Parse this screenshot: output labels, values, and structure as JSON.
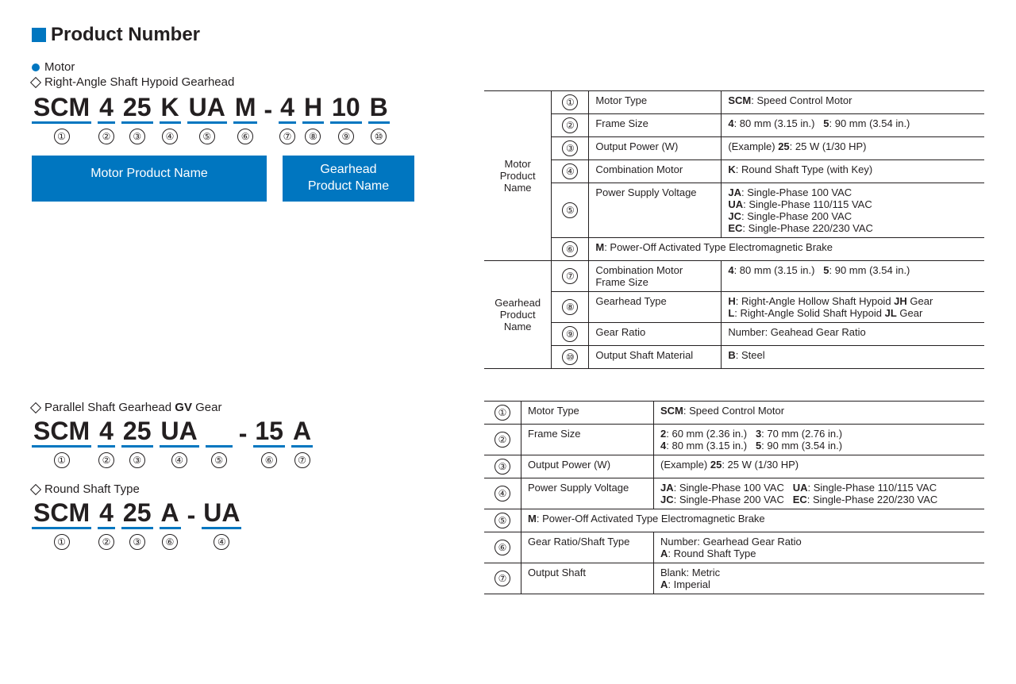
{
  "colors": {
    "accent": "#0076c0",
    "text": "#231f20",
    "bg": "#ffffff"
  },
  "header": {
    "title": "Product Number"
  },
  "sections": {
    "motor_label": "Motor",
    "hypoid_label": "Right-Angle Shaft Hypoid Gearhead",
    "parallel_label": "Parallel Shaft Gearhead GV Gear",
    "round_label": "Round Shaft Type"
  },
  "code1": {
    "segs": [
      "SCM",
      "4",
      "25",
      "K",
      "UA",
      "M",
      "-",
      "4",
      "H",
      "10",
      "B"
    ],
    "nums": [
      "①",
      "②",
      "③",
      "④",
      "⑤",
      "⑥",
      "",
      "⑦",
      "⑧",
      "⑨",
      "⑩"
    ],
    "box_motor": "Motor Product Name",
    "box_gear": "Gearhead\nProduct Name"
  },
  "code2": {
    "segs": [
      "SCM",
      "4",
      "25",
      "UA",
      "",
      "-",
      "15",
      "A"
    ],
    "nums": [
      "①",
      "②",
      "③",
      "④",
      "⑤",
      "",
      "⑥",
      "⑦"
    ]
  },
  "code3": {
    "segs": [
      "SCM",
      "4",
      "25",
      "A",
      "-",
      "UA"
    ],
    "nums": [
      "①",
      "②",
      "③",
      "⑥",
      "",
      "④"
    ]
  },
  "table1": {
    "group1": "Motor\nProduct\nName",
    "group2": "Gearhead\nProduct\nName",
    "rows": [
      {
        "n": "①",
        "label": "Motor Type",
        "val": "<b>SCM</b>: Speed Control Motor"
      },
      {
        "n": "②",
        "label": "Frame Size",
        "val": "<b>4</b>: 80 mm (3.15 in.)&nbsp;&nbsp;&nbsp;<b>5</b>: 90 mm (3.54 in.)"
      },
      {
        "n": "③",
        "label": "Output Power (W)",
        "val": "(Example) <b>25</b>: 25 W (1/30 HP)"
      },
      {
        "n": "④",
        "label": "Combination Motor",
        "val": "<b>K</b>: Round Shaft Type (with Key)"
      },
      {
        "n": "⑤",
        "label": "Power Supply Voltage",
        "val": "<b>JA</b>: Single-Phase 100 VAC<br><b>UA</b>: Single-Phase 110/115 VAC<br><b>JC</b>: Single-Phase 200 VAC<br><b>EC</b>: Single-Phase 220/230 VAC"
      },
      {
        "n": "⑥",
        "label": "",
        "val": "<b>M</b>: Power-Off Activated Type Electromagnetic Brake",
        "span": true
      },
      {
        "n": "⑦",
        "label": "Combination Motor Frame Size",
        "val": "<b>4</b>: 80 mm (3.15 in.)&nbsp;&nbsp;&nbsp;<b>5</b>: 90 mm (3.54 in.)"
      },
      {
        "n": "⑧",
        "label": "Gearhead Type",
        "val": "<b>H</b>: Right-Angle Hollow Shaft Hypoid <b>JH</b> Gear<br><b>L</b>: Right-Angle Solid Shaft Hypoid <b>JL</b> Gear"
      },
      {
        "n": "⑨",
        "label": "Gear Ratio",
        "val": "Number: Geahead Gear Ratio"
      },
      {
        "n": "⑩",
        "label": "Output Shaft Material",
        "val": "<b>B</b>: Steel"
      }
    ]
  },
  "table2": {
    "rows": [
      {
        "n": "①",
        "label": "Motor Type",
        "val": "<b>SCM</b>: Speed Control Motor"
      },
      {
        "n": "②",
        "label": "Frame Size",
        "val": "<b>2</b>: 60 mm (2.36 in.)&nbsp;&nbsp;&nbsp;<b>3</b>: 70 mm (2.76 in.)<br><b>4</b>: 80 mm (3.15 in.)&nbsp;&nbsp;&nbsp;<b>5</b>: 90 mm (3.54 in.)"
      },
      {
        "n": "③",
        "label": "Output Power (W)",
        "val": "(Example) <b>25</b>: 25 W (1/30 HP)"
      },
      {
        "n": "④",
        "label": "Power Supply Voltage",
        "val": "<b>JA</b>: Single-Phase 100 VAC&nbsp;&nbsp;&nbsp;<b>UA</b>: Single-Phase 110/115 VAC<br><b>JC</b>: Single-Phase 200 VAC&nbsp;&nbsp;&nbsp;<b>EC</b>: Single-Phase 220/230 VAC"
      },
      {
        "n": "⑤",
        "label": "",
        "val": "<b>M</b>: Power-Off Activated Type Electromagnetic Brake",
        "span": true
      },
      {
        "n": "⑥",
        "label": "Gear Ratio/Shaft Type",
        "val": "Number: Gearhead Gear Ratio<br><b>A</b>: Round Shaft Type"
      },
      {
        "n": "⑦",
        "label": "Output Shaft",
        "val": "Blank: Metric<br><b>A</b>: Imperial"
      }
    ]
  }
}
